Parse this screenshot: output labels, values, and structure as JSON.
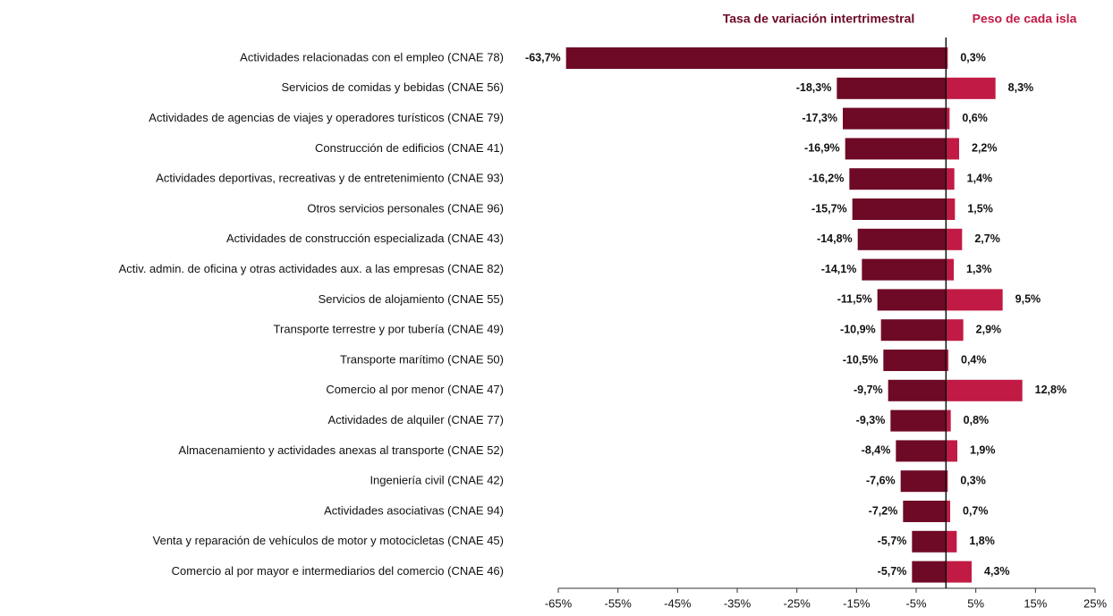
{
  "chart_data": {
    "type": "bar",
    "orientation": "horizontal",
    "categories": [
      "Actividades relacionadas con el empleo (CNAE 78)",
      "Servicios de comidas y bebidas (CNAE 56)",
      "Actividades de agencias de viajes y operadores turísticos (CNAE 79)",
      "Construcción de edificios (CNAE 41)",
      "Actividades deportivas, recreativas y de entretenimiento (CNAE 93)",
      "Otros servicios personales (CNAE 96)",
      "Actividades de construcción especializada (CNAE 43)",
      "Activ. admin. de oficina y otras actividades aux. a las empresas (CNAE 82)",
      "Servicios de alojamiento (CNAE 55)",
      "Transporte terrestre y por tubería (CNAE 49)",
      "Transporte marítimo (CNAE 50)",
      "Comercio al por menor (CNAE 47)",
      "Actividades de alquiler (CNAE 77)",
      "Almacenamiento y actividades anexas al transporte (CNAE 52)",
      "Ingeniería civil (CNAE 42)",
      "Actividades asociativas (CNAE 94)",
      "Venta y reparación de vehículos de motor y motocicletas (CNAE 45)",
      "Comercio al por mayor e intermediarios del comercio (CNAE 46)"
    ],
    "series": [
      {
        "name": "Tasa de variación intertrimestral",
        "color": "#6e0a25",
        "values": [
          -63.7,
          -18.3,
          -17.3,
          -16.9,
          -16.2,
          -15.7,
          -14.8,
          -14.1,
          -11.5,
          -10.9,
          -10.5,
          -9.7,
          -9.3,
          -8.4,
          -7.6,
          -7.2,
          -5.7,
          -5.7
        ],
        "value_labels": [
          "-63,7%",
          "-18,3%",
          "-17,3%",
          "-16,9%",
          "-16,2%",
          "-15,7%",
          "-14,8%",
          "-14,1%",
          "-11,5%",
          "-10,9%",
          "-10,5%",
          "-9,7%",
          "-9,3%",
          "-8,4%",
          "-7,6%",
          "-7,2%",
          "-5,7%",
          "-5,7%"
        ]
      },
      {
        "name": "Peso de cada isla",
        "color": "#c11a44",
        "values": [
          0.3,
          8.3,
          0.6,
          2.2,
          1.4,
          1.5,
          2.7,
          1.3,
          9.5,
          2.9,
          0.4,
          12.8,
          0.8,
          1.9,
          0.3,
          0.7,
          1.8,
          4.3
        ],
        "value_labels": [
          "0,3%",
          "8,3%",
          "0,6%",
          "2,2%",
          "1,4%",
          "1,5%",
          "2,7%",
          "1,3%",
          "9,5%",
          "2,9%",
          "0,4%",
          "12,8%",
          "0,8%",
          "1,9%",
          "0,3%",
          "0,7%",
          "1,8%",
          "4,3%"
        ]
      }
    ],
    "xlim": [
      -65,
      25
    ],
    "xticks": [
      {
        "value": -65,
        "label": "-65%"
      },
      {
        "value": -55,
        "label": "-55%"
      },
      {
        "value": -45,
        "label": "-45%"
      },
      {
        "value": -35,
        "label": "-35%"
      },
      {
        "value": -25,
        "label": "-25%"
      },
      {
        "value": -15,
        "label": "-15%"
      },
      {
        "value": -5,
        "label": "-5%"
      },
      {
        "value": 5,
        "label": "5%"
      },
      {
        "value": 15,
        "label": "15%"
      },
      {
        "value": 25,
        "label": "25%"
      }
    ]
  }
}
